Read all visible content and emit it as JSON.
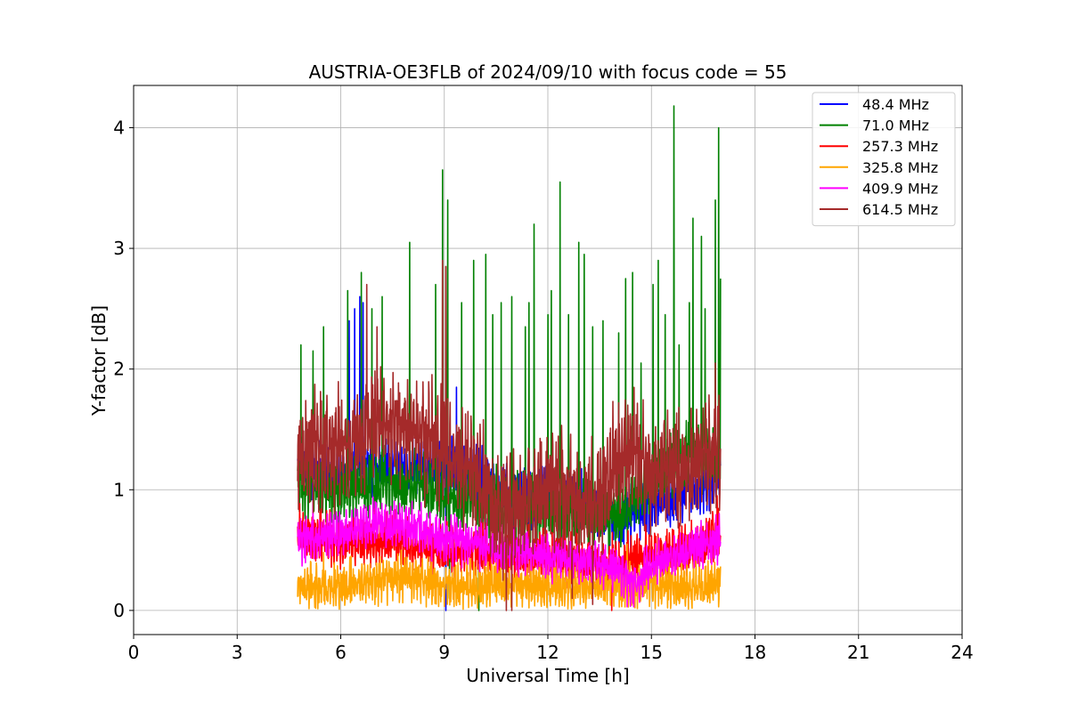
{
  "chart_data": {
    "type": "line",
    "title": "AUSTRIA-OE3FLB of 2024/09/10 with focus code = 55",
    "xlabel": "Universal Time [h]",
    "ylabel": "Y-factor [dB]",
    "xlim": [
      0,
      24
    ],
    "ylim": [
      -0.2,
      4.35
    ],
    "xticks": [
      0,
      3,
      6,
      9,
      12,
      15,
      18,
      21,
      24
    ],
    "yticks": [
      0,
      1,
      2,
      3,
      4
    ],
    "grid": true,
    "legend_position": "top-right",
    "series": [
      {
        "name": " 48.4 MHz",
        "color": "#0000ff",
        "range": [
          4.75,
          17.0
        ],
        "baseline": [
          [
            4.75,
            1.2
          ],
          [
            6,
            1.15
          ],
          [
            7,
            1.2
          ],
          [
            9,
            1.2
          ],
          [
            10,
            1.1
          ],
          [
            11,
            0.95
          ],
          [
            12,
            0.95
          ],
          [
            13,
            0.9
          ],
          [
            14,
            0.75
          ],
          [
            15,
            0.9
          ],
          [
            16,
            1.0
          ],
          [
            17,
            1.1
          ]
        ],
        "noise": 0.3,
        "spikes": [
          [
            6.25,
            2.4
          ],
          [
            6.4,
            2.5
          ],
          [
            6.55,
            2.6
          ],
          [
            6.65,
            2.55
          ],
          [
            9.05,
            0.0
          ],
          [
            9.35,
            1.85
          ],
          [
            14.2,
            0.55
          ],
          [
            14.4,
            0.5
          ],
          [
            17.0,
            1.2
          ]
        ]
      },
      {
        "name": " 71.0 MHz",
        "color": "#008000",
        "range": [
          4.75,
          17.0
        ],
        "baseline": [
          [
            4.75,
            1.05
          ],
          [
            6,
            1.0
          ],
          [
            7,
            1.05
          ],
          [
            8,
            1.05
          ],
          [
            9,
            0.95
          ],
          [
            10,
            0.9
          ],
          [
            11,
            0.85
          ],
          [
            12,
            0.85
          ],
          [
            13,
            0.8
          ],
          [
            14,
            0.75
          ],
          [
            15,
            1.1
          ],
          [
            16,
            1.3
          ],
          [
            17,
            1.2
          ]
        ],
        "noise": 0.35,
        "spikes": [
          [
            4.85,
            2.2
          ],
          [
            5.2,
            2.15
          ],
          [
            5.5,
            2.35
          ],
          [
            6.2,
            2.65
          ],
          [
            6.6,
            2.8
          ],
          [
            6.9,
            2.5
          ],
          [
            7.2,
            2.6
          ],
          [
            8.0,
            3.05
          ],
          [
            8.75,
            2.7
          ],
          [
            8.95,
            3.65
          ],
          [
            9.1,
            3.4
          ],
          [
            9.5,
            2.55
          ],
          [
            9.85,
            2.9
          ],
          [
            10.2,
            2.95
          ],
          [
            10.4,
            2.45
          ],
          [
            10.65,
            2.55
          ],
          [
            10.95,
            2.6
          ],
          [
            11.35,
            2.35
          ],
          [
            11.45,
            2.55
          ],
          [
            11.6,
            3.2
          ],
          [
            12.0,
            2.45
          ],
          [
            12.1,
            2.65
          ],
          [
            12.35,
            3.55
          ],
          [
            12.6,
            2.45
          ],
          [
            12.9,
            3.05
          ],
          [
            13.05,
            2.95
          ],
          [
            13.3,
            2.35
          ],
          [
            13.6,
            2.4
          ],
          [
            14.05,
            2.3
          ],
          [
            14.25,
            2.75
          ],
          [
            14.45,
            2.8
          ],
          [
            14.7,
            2.05
          ],
          [
            15.05,
            2.7
          ],
          [
            15.2,
            2.9
          ],
          [
            15.4,
            2.45
          ],
          [
            15.65,
            4.18
          ],
          [
            15.8,
            2.2
          ],
          [
            16.1,
            2.55
          ],
          [
            16.2,
            3.25
          ],
          [
            16.45,
            3.1
          ],
          [
            16.55,
            2.5
          ],
          [
            16.85,
            3.4
          ],
          [
            16.95,
            4.0
          ],
          [
            17.05,
            2.75
          ],
          [
            10.0,
            0.0
          ],
          [
            9.15,
            0.1
          ]
        ]
      },
      {
        "name": " 257.3 MHz",
        "color": "#ff0000",
        "range": [
          4.75,
          17.0
        ],
        "baseline": [
          [
            4.75,
            0.65
          ],
          [
            6,
            0.55
          ],
          [
            7,
            0.6
          ],
          [
            8,
            0.55
          ],
          [
            9,
            0.5
          ],
          [
            10,
            0.5
          ],
          [
            11,
            0.45
          ],
          [
            12,
            0.45
          ],
          [
            13,
            0.4
          ],
          [
            14,
            0.4
          ],
          [
            15,
            0.45
          ],
          [
            16,
            0.5
          ],
          [
            17,
            0.65
          ]
        ],
        "noise": 0.28,
        "spikes": [
          [
            10.4,
            0.95
          ],
          [
            12.5,
            0.95
          ],
          [
            16.9,
            0.95
          ],
          [
            13.85,
            0.0
          ]
        ]
      },
      {
        "name": " 325.8 MHz",
        "color": "#ffa500",
        "range": [
          4.75,
          17.0
        ],
        "baseline": [
          [
            4.75,
            0.2
          ],
          [
            6,
            0.2
          ],
          [
            7,
            0.25
          ],
          [
            8,
            0.28
          ],
          [
            9,
            0.2
          ],
          [
            10,
            0.2
          ],
          [
            11,
            0.22
          ],
          [
            12,
            0.2
          ],
          [
            13,
            0.2
          ],
          [
            14,
            0.2
          ],
          [
            15,
            0.22
          ],
          [
            16,
            0.2
          ],
          [
            17,
            0.22
          ]
        ],
        "noise": 0.24,
        "spikes": [
          [
            5.5,
            0.48
          ],
          [
            6.3,
            0.45
          ],
          [
            10.5,
            0.42
          ],
          [
            14.3,
            0.55
          ],
          [
            15.6,
            0.42
          ]
        ]
      },
      {
        "name": " 409.9 MHz",
        "color": "#ff00ff",
        "range": [
          4.75,
          17.0
        ],
        "baseline": [
          [
            4.75,
            0.6
          ],
          [
            6,
            0.62
          ],
          [
            7,
            0.72
          ],
          [
            8,
            0.7
          ],
          [
            9,
            0.6
          ],
          [
            10,
            0.55
          ],
          [
            11,
            0.5
          ],
          [
            12,
            0.45
          ],
          [
            13,
            0.45
          ],
          [
            14,
            0.35
          ],
          [
            14.5,
            0.2
          ],
          [
            15,
            0.4
          ],
          [
            16,
            0.5
          ],
          [
            17,
            0.6
          ]
        ],
        "noise": 0.24,
        "spikes": [
          [
            5.2,
            0.95
          ],
          [
            7.0,
            0.9
          ],
          [
            9.3,
            0.8
          ],
          [
            14.3,
            0.03
          ]
        ]
      },
      {
        "name": " 614.5 MHz",
        "color": "#a52a2a",
        "range": [
          4.75,
          17.0
        ],
        "baseline": [
          [
            4.75,
            1.3
          ],
          [
            5.5,
            1.35
          ],
          [
            6.5,
            1.4
          ],
          [
            7,
            1.55
          ],
          [
            8,
            1.5
          ],
          [
            9,
            1.3
          ],
          [
            10,
            1.1
          ],
          [
            10.5,
            0.8
          ],
          [
            11,
            0.85
          ],
          [
            12,
            1.05
          ],
          [
            12.5,
            1.0
          ],
          [
            13,
            0.85
          ],
          [
            13.5,
            0.9
          ],
          [
            14,
            1.25
          ],
          [
            14.5,
            1.35
          ],
          [
            15,
            1.1
          ],
          [
            16,
            1.2
          ],
          [
            17,
            1.35
          ]
        ],
        "noise": 0.6,
        "spikes": [
          [
            6.75,
            2.7
          ],
          [
            8.95,
            2.9
          ],
          [
            9.05,
            2.85
          ],
          [
            7.05,
            2.35
          ],
          [
            10.8,
            0.0
          ],
          [
            10.95,
            0.0
          ],
          [
            12.7,
            0.1
          ],
          [
            13.3,
            0.05
          ],
          [
            16.85,
            2.05
          ]
        ]
      }
    ]
  }
}
